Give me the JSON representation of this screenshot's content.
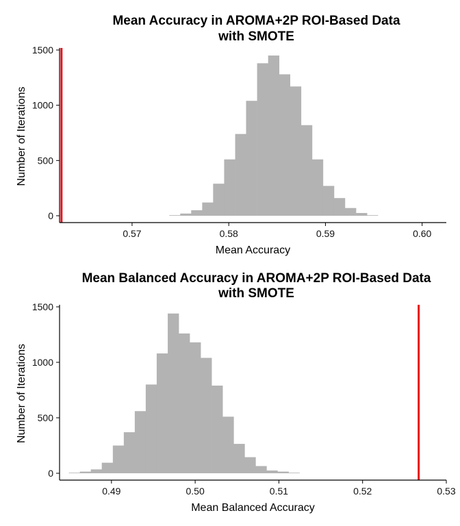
{
  "chart_data": [
    {
      "type": "bar",
      "title": [
        "Mean Accuracy in AROMA+2P ROI-Based Data",
        "with SMOTE"
      ],
      "xlabel": "Mean Accuracy",
      "ylabel": "Number of Iterations",
      "xlim": [
        0.5625,
        0.6025
      ],
      "ylim": [
        0,
        1500
      ],
      "x_ticks": [
        {
          "value": 0.57,
          "label": "0.57"
        },
        {
          "value": 0.58,
          "label": "0.58"
        },
        {
          "value": 0.59,
          "label": "0.59"
        },
        {
          "value": 0.6,
          "label": "0.60"
        }
      ],
      "y_ticks": [
        {
          "value": 0,
          "label": "0"
        },
        {
          "value": 500,
          "label": "500"
        },
        {
          "value": 1000,
          "label": "1000"
        },
        {
          "value": 1500,
          "label": "1500"
        }
      ],
      "bin_width": 0.0011364,
      "bins": [
        {
          "x": 0.57441,
          "count": 5
        },
        {
          "x": 0.57555,
          "count": 20
        },
        {
          "x": 0.57668,
          "count": 50
        },
        {
          "x": 0.57782,
          "count": 120
        },
        {
          "x": 0.57895,
          "count": 290
        },
        {
          "x": 0.58009,
          "count": 510
        },
        {
          "x": 0.58123,
          "count": 740
        },
        {
          "x": 0.58236,
          "count": 1040
        },
        {
          "x": 0.5835,
          "count": 1380
        },
        {
          "x": 0.58464,
          "count": 1450
        },
        {
          "x": 0.58577,
          "count": 1280
        },
        {
          "x": 0.58691,
          "count": 1170
        },
        {
          "x": 0.58805,
          "count": 820
        },
        {
          "x": 0.58918,
          "count": 510
        },
        {
          "x": 0.59032,
          "count": 270
        },
        {
          "x": 0.59145,
          "count": 160
        },
        {
          "x": 0.59259,
          "count": 70
        },
        {
          "x": 0.59373,
          "count": 25
        },
        {
          "x": 0.59486,
          "count": 5
        }
      ],
      "reference_line": {
        "x": 0.5627,
        "color": "#e8101a"
      },
      "bar_color": "#b3b3b3"
    },
    {
      "type": "bar",
      "title": [
        "Mean Balanced Accuracy in AROMA+2P ROI-Based Data",
        "with SMOTE"
      ],
      "xlabel": "Mean Balanced Accuracy",
      "ylabel": "Number of Iterations",
      "xlim": [
        0.4838,
        0.53
      ],
      "ylim": [
        0,
        1500
      ],
      "x_ticks": [
        {
          "value": 0.49,
          "label": "0.49"
        },
        {
          "value": 0.5,
          "label": "0.50"
        },
        {
          "value": 0.51,
          "label": "0.51"
        },
        {
          "value": 0.52,
          "label": "0.52"
        },
        {
          "value": 0.53,
          "label": "0.53"
        }
      ],
      "y_ticks": [
        {
          "value": 0,
          "label": "0"
        },
        {
          "value": 500,
          "label": "500"
        },
        {
          "value": 1000,
          "label": "1000"
        },
        {
          "value": 1500,
          "label": "1500"
        }
      ],
      "bin_width": 0.001312,
      "bins": [
        {
          "x": 0.48557,
          "count": 5
        },
        {
          "x": 0.48688,
          "count": 15
        },
        {
          "x": 0.48819,
          "count": 35
        },
        {
          "x": 0.4895,
          "count": 95
        },
        {
          "x": 0.49082,
          "count": 250
        },
        {
          "x": 0.49213,
          "count": 370
        },
        {
          "x": 0.49344,
          "count": 560
        },
        {
          "x": 0.49475,
          "count": 800
        },
        {
          "x": 0.49606,
          "count": 1080
        },
        {
          "x": 0.49738,
          "count": 1440
        },
        {
          "x": 0.49869,
          "count": 1260
        },
        {
          "x": 0.5,
          "count": 1180
        },
        {
          "x": 0.50131,
          "count": 1040
        },
        {
          "x": 0.50262,
          "count": 790
        },
        {
          "x": 0.50394,
          "count": 510
        },
        {
          "x": 0.50525,
          "count": 265
        },
        {
          "x": 0.50656,
          "count": 145
        },
        {
          "x": 0.50787,
          "count": 65
        },
        {
          "x": 0.50918,
          "count": 25
        },
        {
          "x": 0.5105,
          "count": 15
        },
        {
          "x": 0.51181,
          "count": 5
        }
      ],
      "reference_line": {
        "x": 0.5267,
        "color": "#e8101a"
      },
      "bar_color": "#b3b3b3"
    }
  ]
}
